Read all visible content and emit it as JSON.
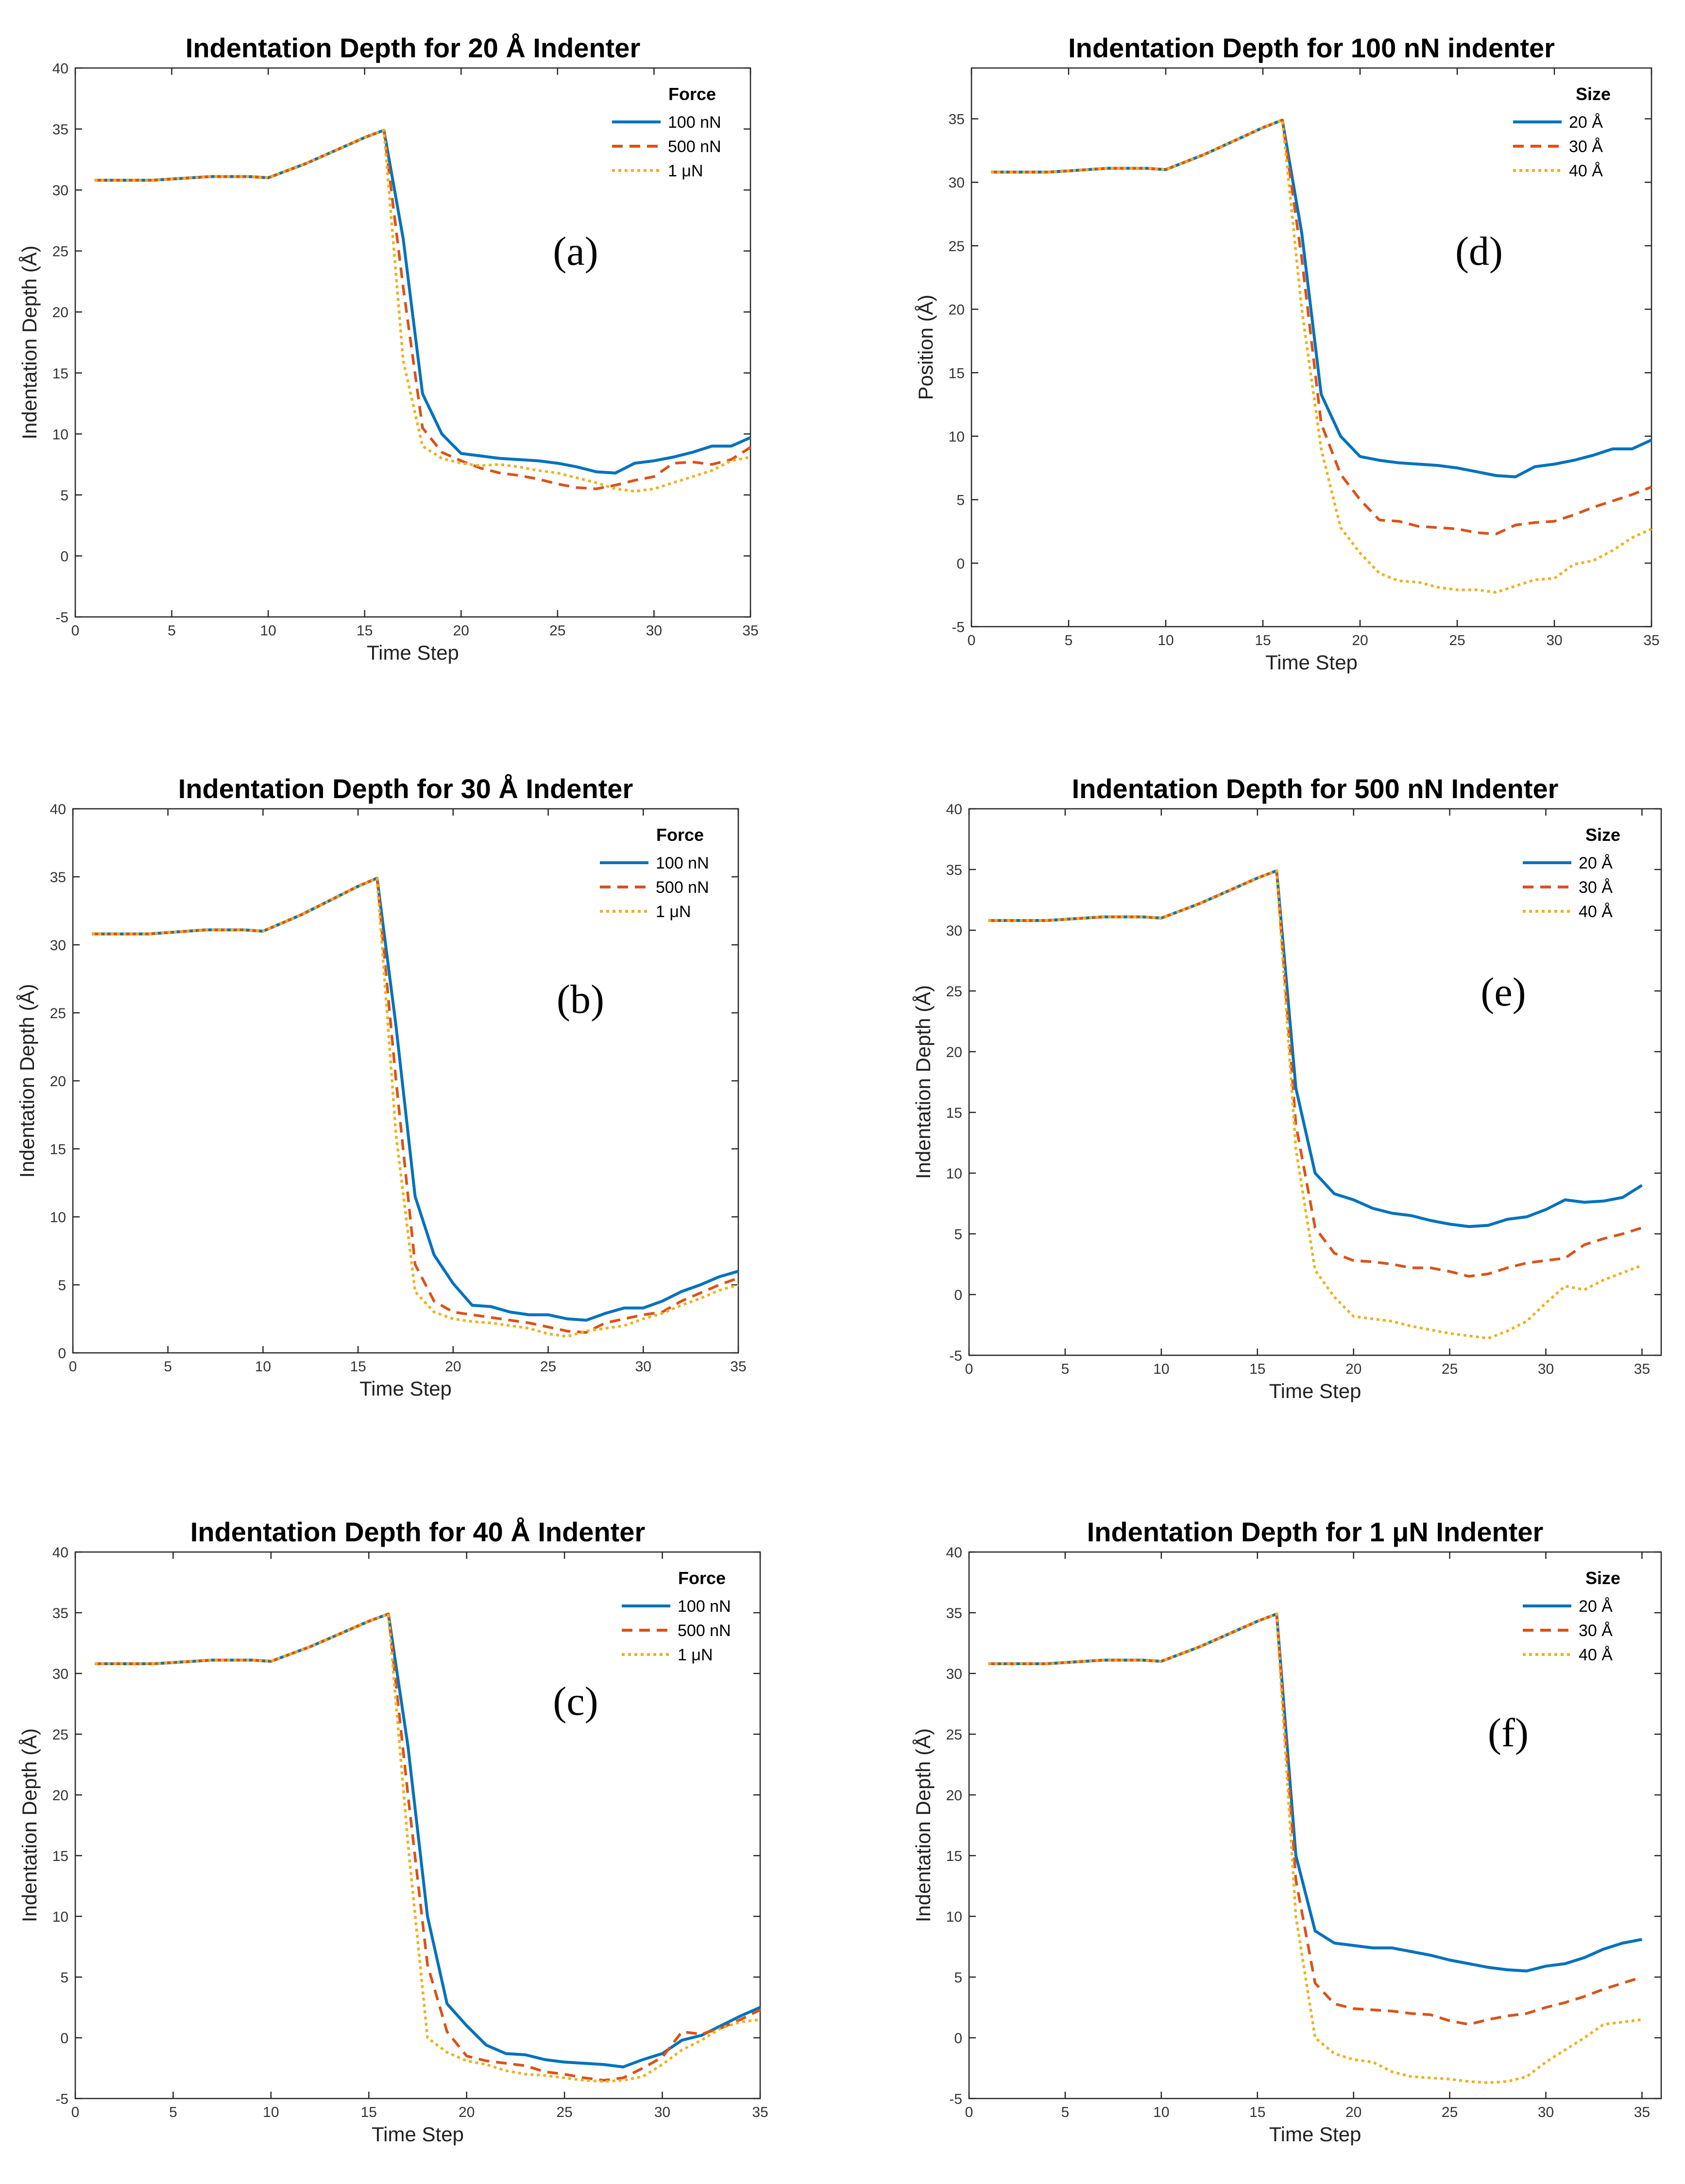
{
  "colors": {
    "series1": "#0072BD",
    "series2": "#D95319",
    "series3": "#EDB120"
  },
  "chart_data": [
    {
      "type": "line",
      "panel_label": "(a)",
      "title": "Indentation Depth for 20 Å Indenter",
      "xlabel": "Time Step",
      "ylabel": "Indentation Depth (Å)",
      "xlim": [
        0,
        35
      ],
      "ylim": [
        -5,
        40
      ],
      "xticks": [
        0,
        5,
        10,
        15,
        20,
        25,
        30,
        35
      ],
      "yticks": [
        -5,
        0,
        5,
        10,
        15,
        20,
        25,
        30,
        35,
        40
      ],
      "legend_title": "Force",
      "legend_position": "top-right",
      "x": [
        1,
        2,
        3,
        4,
        5,
        6,
        7,
        8,
        9,
        10,
        11,
        12,
        13,
        14,
        15,
        16,
        17,
        18,
        19,
        20,
        21,
        22,
        23,
        24,
        25,
        26,
        27,
        28,
        29,
        30,
        31,
        32,
        33,
        34,
        35
      ],
      "series": [
        {
          "name": "100 nN",
          "style": "solid",
          "values": [
            30.8,
            30.8,
            30.8,
            30.8,
            30.9,
            31.0,
            31.1,
            31.1,
            31.1,
            31.0,
            31.6,
            32.2,
            32.9,
            33.6,
            34.3,
            34.9,
            26,
            13.3,
            10.0,
            8.4,
            8.2,
            8.0,
            7.9,
            7.8,
            7.6,
            7.3,
            6.9,
            6.8,
            7.6,
            7.8,
            8.1,
            8.5,
            9.0,
            9.0,
            9.7
          ]
        },
        {
          "name": "500 nN",
          "style": "dashed",
          "values": [
            30.8,
            30.8,
            30.8,
            30.8,
            30.9,
            31.0,
            31.1,
            31.1,
            31.1,
            31.0,
            31.6,
            32.2,
            32.9,
            33.6,
            34.3,
            34.9,
            22,
            10.5,
            8.5,
            7.8,
            7.2,
            6.8,
            6.6,
            6.3,
            5.9,
            5.6,
            5.5,
            5.8,
            6.2,
            6.5,
            7.6,
            7.7,
            7.5,
            7.9,
            8.9
          ]
        },
        {
          "name": "1 μN",
          "style": "dotted",
          "values": [
            30.8,
            30.8,
            30.8,
            30.8,
            30.9,
            31.0,
            31.1,
            31.1,
            31.1,
            31.0,
            31.6,
            32.2,
            32.9,
            33.6,
            34.3,
            34.9,
            16,
            9.0,
            8.0,
            7.6,
            7.4,
            7.5,
            7.3,
            7.0,
            6.8,
            6.4,
            6.0,
            5.5,
            5.3,
            5.5,
            6.0,
            6.5,
            7.0,
            7.8,
            8.1
          ]
        }
      ]
    },
    {
      "type": "line",
      "panel_label": "(b)",
      "title": "Indentation Depth for 30 Å Indenter",
      "xlabel": "Time Step",
      "ylabel": "Indentation Depth (Å)",
      "xlim": [
        0,
        35
      ],
      "ylim": [
        0,
        40
      ],
      "xticks": [
        0,
        5,
        10,
        15,
        20,
        25,
        30,
        35
      ],
      "yticks": [
        0,
        5,
        10,
        15,
        20,
        25,
        30,
        35,
        40
      ],
      "legend_title": "Force",
      "legend_position": "top-right",
      "x": [
        1,
        2,
        3,
        4,
        5,
        6,
        7,
        8,
        9,
        10,
        11,
        12,
        13,
        14,
        15,
        16,
        17,
        18,
        19,
        20,
        21,
        22,
        23,
        24,
        25,
        26,
        27,
        28,
        29,
        30,
        31,
        32,
        33,
        34,
        35
      ],
      "series": [
        {
          "name": "100 nN",
          "style": "solid",
          "values": [
            30.8,
            30.8,
            30.8,
            30.8,
            30.9,
            31.0,
            31.1,
            31.1,
            31.1,
            31.0,
            31.6,
            32.2,
            32.9,
            33.6,
            34.3,
            34.9,
            24,
            11.5,
            7.2,
            5.1,
            3.5,
            3.4,
            3.0,
            2.8,
            2.8,
            2.5,
            2.4,
            2.9,
            3.3,
            3.3,
            3.8,
            4.5,
            5.0,
            5.6,
            6.0
          ]
        },
        {
          "name": "500 nN",
          "style": "dashed",
          "values": [
            30.8,
            30.8,
            30.8,
            30.8,
            30.9,
            31.0,
            31.1,
            31.1,
            31.1,
            31.0,
            31.6,
            32.2,
            32.9,
            33.6,
            34.3,
            34.9,
            20,
            6.5,
            3.8,
            3.0,
            2.8,
            2.6,
            2.4,
            2.2,
            1.9,
            1.6,
            1.5,
            2.2,
            2.5,
            2.8,
            3.0,
            3.8,
            4.4,
            5.0,
            5.5
          ]
        },
        {
          "name": "1 μN",
          "style": "dotted",
          "values": [
            30.8,
            30.8,
            30.8,
            30.8,
            30.9,
            31.0,
            31.1,
            31.1,
            31.1,
            31.0,
            31.6,
            32.2,
            32.9,
            33.6,
            34.3,
            34.9,
            16,
            4.5,
            3.0,
            2.5,
            2.3,
            2.2,
            2.0,
            1.8,
            1.4,
            1.2,
            1.6,
            1.8,
            2.0,
            2.5,
            2.9,
            3.5,
            4.0,
            4.6,
            5.0
          ]
        }
      ]
    },
    {
      "type": "line",
      "panel_label": "(c)",
      "title": "Indentation Depth for 40 Å Indenter",
      "xlabel": "Time Step",
      "ylabel": "Indentation Depth (Å)",
      "xlim": [
        0,
        35
      ],
      "ylim": [
        -5,
        40
      ],
      "xticks": [
        0,
        5,
        10,
        15,
        20,
        25,
        30,
        35
      ],
      "yticks": [
        -5,
        0,
        5,
        10,
        15,
        20,
        25,
        30,
        35,
        40
      ],
      "legend_title": "Force",
      "legend_position": "top-right",
      "x": [
        1,
        2,
        3,
        4,
        5,
        6,
        7,
        8,
        9,
        10,
        11,
        12,
        13,
        14,
        15,
        16,
        17,
        18,
        19,
        20,
        21,
        22,
        23,
        24,
        25,
        26,
        27,
        28,
        29,
        30,
        31,
        32,
        33,
        34,
        35
      ],
      "series": [
        {
          "name": "100 nN",
          "style": "solid",
          "values": [
            30.8,
            30.8,
            30.8,
            30.8,
            30.9,
            31.0,
            31.1,
            31.1,
            31.1,
            31.0,
            31.6,
            32.2,
            32.9,
            33.6,
            34.3,
            34.9,
            24,
            10.0,
            2.8,
            1.0,
            -0.6,
            -1.3,
            -1.4,
            -1.8,
            -2.0,
            -2.1,
            -2.2,
            -2.4,
            -1.8,
            -1.3,
            -0.2,
            0.2,
            1.0,
            1.8,
            2.5
          ]
        },
        {
          "name": "500 nN",
          "style": "dashed",
          "values": [
            30.8,
            30.8,
            30.8,
            30.8,
            30.9,
            31.0,
            31.1,
            31.1,
            31.1,
            31.0,
            31.6,
            32.2,
            32.9,
            33.6,
            34.3,
            34.9,
            20,
            6.0,
            0.5,
            -1.5,
            -1.9,
            -2.1,
            -2.3,
            -2.8,
            -3.0,
            -3.3,
            -3.5,
            -3.3,
            -2.5,
            -1.6,
            0.5,
            0.3,
            0.8,
            1.5,
            2.3
          ]
        },
        {
          "name": "1 μN",
          "style": "dotted",
          "values": [
            30.8,
            30.8,
            30.8,
            30.8,
            30.9,
            31.0,
            31.1,
            31.1,
            31.1,
            31.0,
            31.6,
            32.2,
            32.9,
            33.6,
            34.3,
            34.9,
            16,
            0.0,
            -1.2,
            -1.9,
            -2.2,
            -2.7,
            -3.0,
            -3.1,
            -3.3,
            -3.5,
            -3.6,
            -3.5,
            -3.2,
            -2.2,
            -1.0,
            -0.2,
            0.8,
            1.3,
            1.5
          ]
        }
      ]
    },
    {
      "type": "line",
      "panel_label": "(d)",
      "title": "Indentation Depth for 100 nN indenter",
      "xlabel": "Time Step",
      "ylabel": "Position (Å)",
      "xlim": [
        0,
        35
      ],
      "ylim": [
        -5,
        39
      ],
      "xticks": [
        0,
        5,
        10,
        15,
        20,
        25,
        30,
        35
      ],
      "yticks": [
        -5,
        0,
        5,
        10,
        15,
        20,
        25,
        30,
        35
      ],
      "legend_title": "Size",
      "legend_position": "top-right",
      "x": [
        1,
        2,
        3,
        4,
        5,
        6,
        7,
        8,
        9,
        10,
        11,
        12,
        13,
        14,
        15,
        16,
        17,
        18,
        19,
        20,
        21,
        22,
        23,
        24,
        25,
        26,
        27,
        28,
        29,
        30,
        31,
        32,
        33,
        34,
        35
      ],
      "series": [
        {
          "name": "20 Å",
          "style": "solid",
          "values": [
            30.8,
            30.8,
            30.8,
            30.8,
            30.9,
            31.0,
            31.1,
            31.1,
            31.1,
            31.0,
            31.6,
            32.2,
            32.9,
            33.6,
            34.3,
            34.9,
            26,
            13.3,
            10.0,
            8.4,
            8.1,
            7.9,
            7.8,
            7.7,
            7.5,
            7.2,
            6.9,
            6.8,
            7.6,
            7.8,
            8.1,
            8.5,
            9.0,
            9.0,
            9.7
          ]
        },
        {
          "name": "30 Å",
          "style": "dashed",
          "values": [
            30.8,
            30.8,
            30.8,
            30.8,
            30.9,
            31.0,
            31.1,
            31.1,
            31.1,
            31.0,
            31.6,
            32.2,
            32.9,
            33.6,
            34.3,
            34.9,
            24,
            11.0,
            7.0,
            5.0,
            3.4,
            3.3,
            2.9,
            2.8,
            2.7,
            2.4,
            2.3,
            3.0,
            3.2,
            3.3,
            3.8,
            4.4,
            4.9,
            5.4,
            6.0
          ]
        },
        {
          "name": "40 Å",
          "style": "dotted",
          "values": [
            30.8,
            30.8,
            30.8,
            30.8,
            30.9,
            31.0,
            31.1,
            31.1,
            31.1,
            31.0,
            31.6,
            32.2,
            32.9,
            33.6,
            34.3,
            34.9,
            20,
            9.0,
            2.8,
            0.8,
            -0.8,
            -1.4,
            -1.5,
            -1.9,
            -2.1,
            -2.1,
            -2.3,
            -1.8,
            -1.3,
            -1.2,
            -0.1,
            0.2,
            1.0,
            2.0,
            2.7
          ]
        }
      ]
    },
    {
      "type": "line",
      "panel_label": "(e)",
      "title": "Indentation Depth for 500 nN Indenter",
      "xlabel": "Time Step",
      "ylabel": "Indentation Depth (Å)",
      "xlim": [
        0,
        36
      ],
      "ylim": [
        -5,
        40
      ],
      "xticks": [
        0,
        5,
        10,
        15,
        20,
        25,
        30,
        35
      ],
      "yticks": [
        -5,
        0,
        5,
        10,
        15,
        20,
        25,
        30,
        35,
        40
      ],
      "legend_title": "Size",
      "legend_position": "top-right",
      "x": [
        1,
        2,
        3,
        4,
        5,
        6,
        7,
        8,
        9,
        10,
        11,
        12,
        13,
        14,
        15,
        16,
        17,
        18,
        19,
        20,
        21,
        22,
        23,
        24,
        25,
        26,
        27,
        28,
        29,
        30,
        31,
        32,
        33,
        34,
        35
      ],
      "series": [
        {
          "name": "20 Å",
          "style": "solid",
          "values": [
            30.8,
            30.8,
            30.8,
            30.8,
            30.9,
            31.0,
            31.1,
            31.1,
            31.1,
            31.0,
            31.6,
            32.2,
            32.9,
            33.6,
            34.3,
            34.9,
            17,
            10.0,
            8.3,
            7.8,
            7.1,
            6.7,
            6.5,
            6.1,
            5.8,
            5.6,
            5.7,
            6.2,
            6.4,
            7.0,
            7.8,
            7.6,
            7.7,
            8.0,
            9.0
          ]
        },
        {
          "name": "30 Å",
          "style": "dashed",
          "values": [
            30.8,
            30.8,
            30.8,
            30.8,
            30.9,
            31.0,
            31.1,
            31.1,
            31.1,
            31.0,
            31.6,
            32.2,
            32.9,
            33.6,
            34.3,
            34.9,
            14,
            5.5,
            3.4,
            2.8,
            2.7,
            2.5,
            2.2,
            2.2,
            1.9,
            1.5,
            1.7,
            2.2,
            2.6,
            2.8,
            3.0,
            4.1,
            4.6,
            5.0,
            5.5
          ]
        },
        {
          "name": "40 Å",
          "style": "dotted",
          "values": [
            30.8,
            30.8,
            30.8,
            30.8,
            30.9,
            31.0,
            31.1,
            31.1,
            31.1,
            31.0,
            31.6,
            32.2,
            32.9,
            33.6,
            34.3,
            34.9,
            12,
            2.0,
            -0.2,
            -1.8,
            -2.0,
            -2.2,
            -2.6,
            -2.9,
            -3.2,
            -3.4,
            -3.6,
            -3.0,
            -2.2,
            -0.7,
            0.7,
            0.4,
            1.2,
            1.8,
            2.4
          ]
        }
      ]
    },
    {
      "type": "line",
      "panel_label": "(f)",
      "title": "Indentation Depth for 1 μN Indenter",
      "xlabel": "Time Step",
      "ylabel": "Indentation Depth (Å)",
      "xlim": [
        0,
        36
      ],
      "ylim": [
        -5,
        40
      ],
      "xticks": [
        0,
        5,
        10,
        15,
        20,
        25,
        30,
        35
      ],
      "yticks": [
        -5,
        0,
        5,
        10,
        15,
        20,
        25,
        30,
        35,
        40
      ],
      "legend_title": "Size",
      "legend_position": "top-right",
      "x": [
        1,
        2,
        3,
        4,
        5,
        6,
        7,
        8,
        9,
        10,
        11,
        12,
        13,
        14,
        15,
        16,
        17,
        18,
        19,
        20,
        21,
        22,
        23,
        24,
        25,
        26,
        27,
        28,
        29,
        30,
        31,
        32,
        33,
        34,
        35
      ],
      "series": [
        {
          "name": "20 Å",
          "style": "solid",
          "values": [
            30.8,
            30.8,
            30.8,
            30.8,
            30.9,
            31.0,
            31.1,
            31.1,
            31.1,
            31.0,
            31.6,
            32.2,
            32.9,
            33.6,
            34.3,
            34.9,
            15,
            8.8,
            7.8,
            7.6,
            7.4,
            7.4,
            7.1,
            6.8,
            6.4,
            6.1,
            5.8,
            5.6,
            5.5,
            5.9,
            6.1,
            6.6,
            7.3,
            7.8,
            8.1
          ]
        },
        {
          "name": "30 Å",
          "style": "dashed",
          "values": [
            30.8,
            30.8,
            30.8,
            30.8,
            30.9,
            31.0,
            31.1,
            31.1,
            31.1,
            31.0,
            31.6,
            32.2,
            32.9,
            33.6,
            34.3,
            34.9,
            13,
            4.5,
            2.8,
            2.4,
            2.3,
            2.2,
            2.0,
            1.9,
            1.4,
            1.1,
            1.5,
            1.8,
            2.0,
            2.5,
            2.9,
            3.4,
            4.0,
            4.5,
            5.0
          ]
        },
        {
          "name": "40 Å",
          "style": "dotted",
          "values": [
            30.8,
            30.8,
            30.8,
            30.8,
            30.9,
            31.0,
            31.1,
            31.1,
            31.1,
            31.0,
            31.6,
            32.2,
            32.9,
            33.6,
            34.3,
            34.9,
            10,
            0.0,
            -1.3,
            -1.8,
            -2.0,
            -2.8,
            -3.2,
            -3.3,
            -3.4,
            -3.6,
            -3.7,
            -3.6,
            -3.2,
            -2.0,
            -1.0,
            0.0,
            1.1,
            1.3,
            1.5
          ]
        }
      ]
    }
  ]
}
